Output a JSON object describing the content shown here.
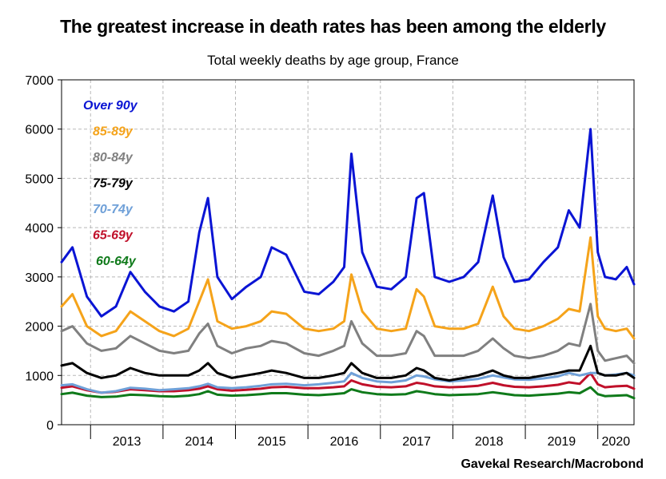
{
  "title": "The greatest increase in death rates has been among the elderly",
  "subtitle": "Total weekly deaths by age group, France",
  "source": "Gavekal Research/Macrobond",
  "chart_data": {
    "type": "line",
    "grid": true,
    "legend": "top-left",
    "xlim": [
      2012.6,
      2020.5
    ],
    "ylim": [
      0,
      7000
    ],
    "y_ticks": [
      0,
      1000,
      2000,
      3000,
      4000,
      5000,
      6000,
      7000
    ],
    "x_tick_labels": [
      "2013",
      "2014",
      "2015",
      "2016",
      "2017",
      "2018",
      "2019",
      "2020"
    ],
    "x": [
      2012.6,
      2012.75,
      2012.95,
      2013.15,
      2013.35,
      2013.55,
      2013.75,
      2013.95,
      2014.15,
      2014.35,
      2014.5,
      2014.62,
      2014.75,
      2014.95,
      2015.15,
      2015.35,
      2015.5,
      2015.7,
      2015.95,
      2016.15,
      2016.35,
      2016.5,
      2016.6,
      2016.75,
      2016.95,
      2017.15,
      2017.35,
      2017.5,
      2017.6,
      2017.75,
      2017.95,
      2018.15,
      2018.35,
      2018.55,
      2018.7,
      2018.85,
      2019.05,
      2019.25,
      2019.45,
      2019.6,
      2019.75,
      2019.9,
      2020.0,
      2020.1,
      2020.25,
      2020.4,
      2020.5
    ],
    "series": [
      {
        "name": "Over 90y",
        "color": "#0a14d4",
        "values": [
          3300,
          3600,
          2600,
          2200,
          2400,
          3100,
          2700,
          2400,
          2300,
          2500,
          3900,
          4600,
          3000,
          2550,
          2800,
          3000,
          3600,
          3450,
          2700,
          2650,
          2900,
          3200,
          5500,
          3500,
          2800,
          2750,
          3000,
          4600,
          4700,
          3000,
          2900,
          3000,
          3300,
          4650,
          3400,
          2900,
          2950,
          3300,
          3600,
          4350,
          4000,
          6000,
          3500,
          3000,
          2950,
          3200,
          2850
        ]
      },
      {
        "name": "85-89y",
        "color": "#f5a31a",
        "values": [
          2400,
          2650,
          2000,
          1800,
          1900,
          2300,
          2100,
          1900,
          1800,
          1950,
          2500,
          2950,
          2100,
          1950,
          2000,
          2100,
          2300,
          2250,
          1950,
          1900,
          1950,
          2100,
          3050,
          2300,
          1950,
          1900,
          1950,
          2750,
          2600,
          2000,
          1950,
          1950,
          2050,
          2800,
          2200,
          1950,
          1900,
          2000,
          2150,
          2350,
          2300,
          3800,
          2200,
          1950,
          1900,
          1950,
          1750
        ]
      },
      {
        "name": "80-84y",
        "color": "#808080",
        "values": [
          1900,
          2000,
          1650,
          1500,
          1550,
          1800,
          1650,
          1500,
          1450,
          1500,
          1850,
          2050,
          1600,
          1450,
          1550,
          1600,
          1700,
          1650,
          1450,
          1400,
          1500,
          1600,
          2100,
          1650,
          1400,
          1400,
          1450,
          1900,
          1800,
          1400,
          1400,
          1400,
          1500,
          1750,
          1550,
          1400,
          1350,
          1400,
          1500,
          1650,
          1600,
          2450,
          1500,
          1300,
          1350,
          1400,
          1250
        ]
      },
      {
        "name": "75-79y",
        "color": "#000000",
        "values": [
          1200,
          1250,
          1050,
          950,
          1000,
          1150,
          1050,
          1000,
          1000,
          1000,
          1100,
          1250,
          1050,
          950,
          1000,
          1050,
          1100,
          1050,
          950,
          950,
          1000,
          1050,
          1250,
          1050,
          950,
          950,
          1000,
          1150,
          1100,
          950,
          900,
          950,
          1000,
          1100,
          1000,
          950,
          950,
          1000,
          1050,
          1100,
          1100,
          1600,
          1050,
          1000,
          1000,
          1050,
          950
        ]
      },
      {
        "name": "70-74y",
        "color": "#6fa0d8",
        "values": [
          800,
          820,
          720,
          650,
          680,
          750,
          730,
          700,
          720,
          740,
          780,
          830,
          760,
          740,
          760,
          790,
          820,
          830,
          800,
          820,
          850,
          880,
          1050,
          950,
          880,
          860,
          900,
          1000,
          980,
          920,
          880,
          900,
          930,
          1000,
          960,
          920,
          910,
          940,
          980,
          1050,
          1000,
          1050,
          1050,
          1000,
          1020,
          1050,
          1000
        ]
      },
      {
        "name": "65-69y",
        "color": "#c0102a",
        "values": [
          750,
          780,
          700,
          650,
          670,
          720,
          700,
          680,
          680,
          700,
          730,
          780,
          720,
          690,
          710,
          730,
          760,
          770,
          740,
          740,
          760,
          780,
          900,
          820,
          770,
          760,
          780,
          850,
          830,
          780,
          760,
          770,
          790,
          850,
          800,
          770,
          760,
          780,
          810,
          860,
          830,
          1050,
          820,
          760,
          780,
          790,
          730
        ]
      },
      {
        "name": "60-64y",
        "color": "#0f7a1a",
        "values": [
          620,
          650,
          590,
          560,
          570,
          610,
          600,
          580,
          570,
          590,
          620,
          680,
          610,
          590,
          600,
          620,
          640,
          640,
          610,
          600,
          620,
          640,
          720,
          660,
          620,
          610,
          620,
          680,
          660,
          620,
          600,
          610,
          620,
          660,
          630,
          600,
          590,
          610,
          630,
          660,
          640,
          760,
          620,
          580,
          590,
          600,
          540
        ]
      }
    ]
  }
}
